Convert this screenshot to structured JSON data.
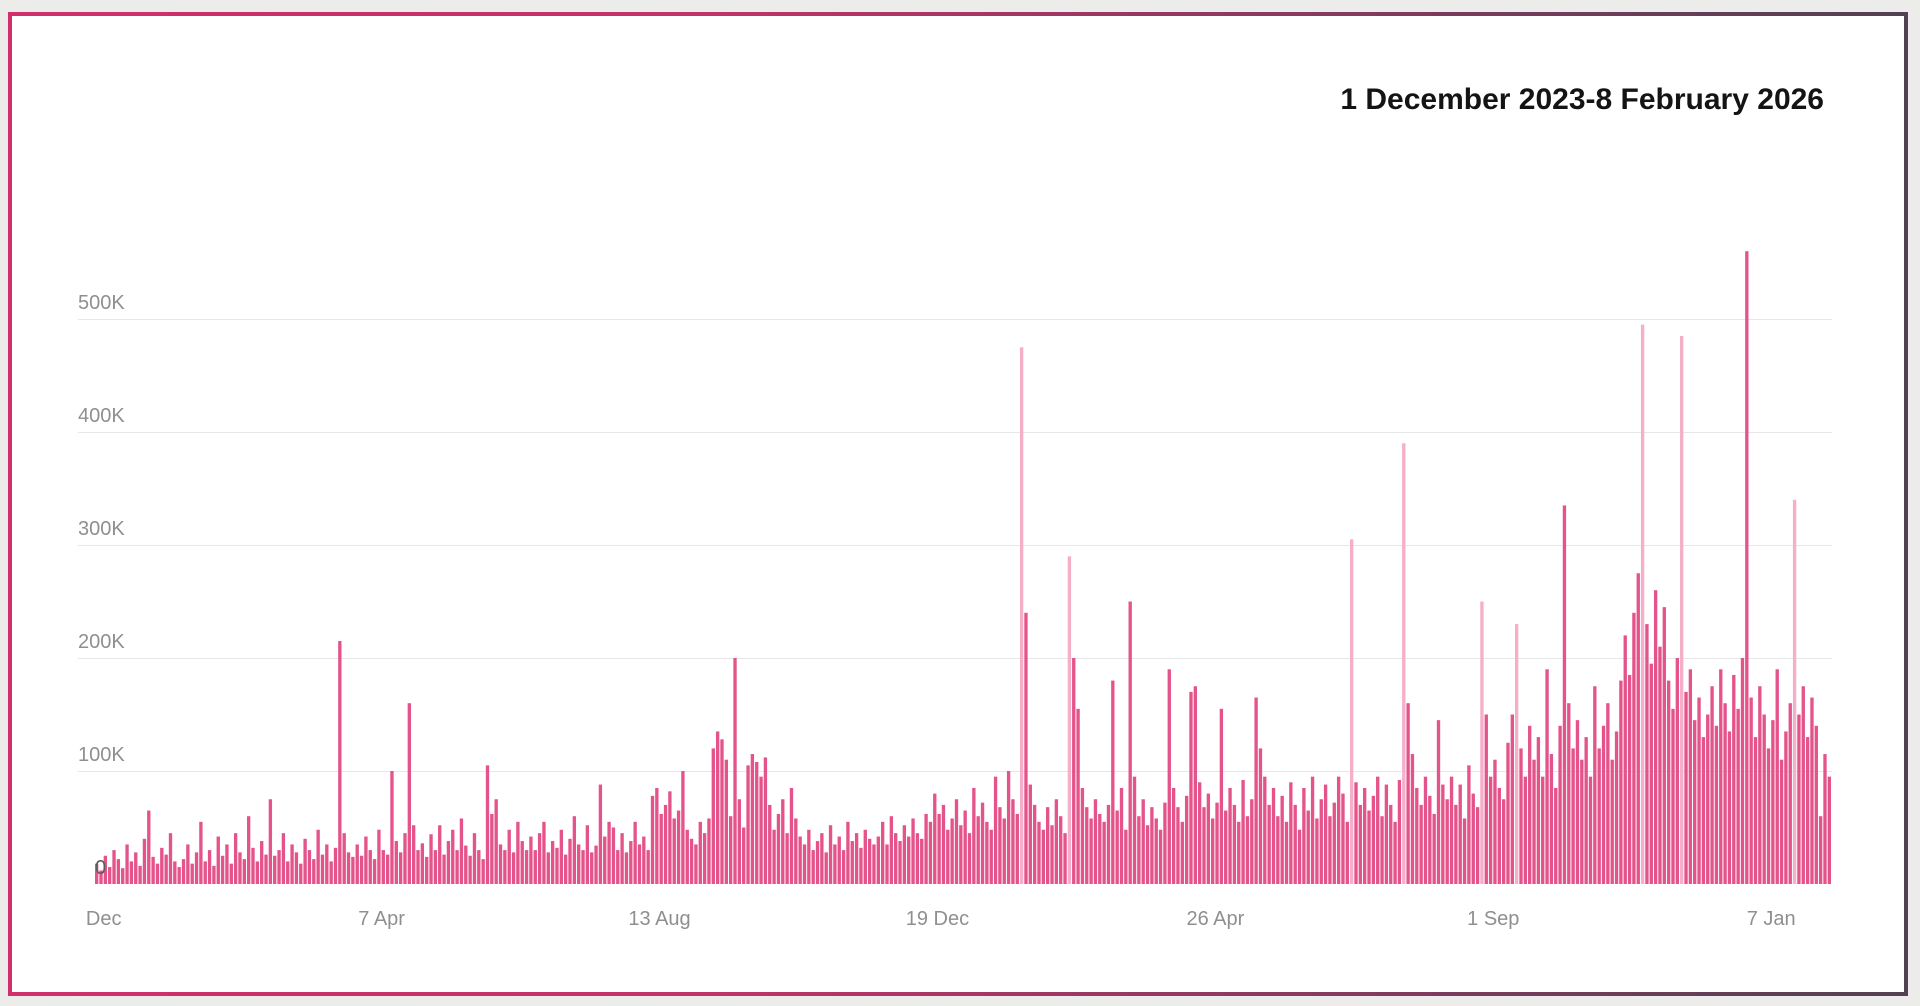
{
  "window": {
    "type": "chart-panel"
  },
  "chart_data": {
    "type": "bar",
    "title": "1 December 2023-8 February 2026",
    "start_date": "1 December 2023",
    "end_date": "8 February 2026",
    "unit": "count",
    "value_scale": "thousands",
    "bin_days": 2,
    "grid": true,
    "ylim": [
      0,
      560000
    ],
    "y_ticks": [
      {
        "label": "500K",
        "value": 500
      },
      {
        "label": "400K",
        "value": 400
      },
      {
        "label": "300K",
        "value": 300
      },
      {
        "label": "200K",
        "value": 200
      },
      {
        "label": "100K",
        "value": 100
      }
    ],
    "y_zero_label": "0",
    "x_ticks": [
      {
        "label": "Dec",
        "bin": 2
      },
      {
        "label": "7 Apr",
        "bin": 66
      },
      {
        "label": "13 Aug",
        "bin": 130
      },
      {
        "label": "19 Dec",
        "bin": 194
      },
      {
        "label": "26 Apr",
        "bin": 258
      },
      {
        "label": "1 Sep",
        "bin": 322
      },
      {
        "label": "7 Jan",
        "bin": 386
      }
    ],
    "values_in_thousands": [
      18,
      12,
      25,
      15,
      30,
      22,
      14,
      35,
      20,
      28,
      16,
      40,
      65,
      24,
      18,
      32,
      26,
      45,
      20,
      15,
      22,
      35,
      18,
      28,
      55,
      20,
      30,
      16,
      42,
      25,
      35,
      18,
      45,
      28,
      22,
      60,
      32,
      20,
      38,
      26,
      75,
      25,
      30,
      45,
      20,
      35,
      28,
      18,
      40,
      30,
      22,
      48,
      26,
      35,
      20,
      32,
      215,
      45,
      28,
      24,
      35,
      25,
      42,
      30,
      22,
      48,
      30,
      26,
      100,
      38,
      28,
      45,
      160,
      52,
      30,
      36,
      24,
      44,
      30,
      52,
      26,
      38,
      48,
      30,
      58,
      34,
      25,
      45,
      30,
      22,
      105,
      62,
      75,
      35,
      30,
      48,
      28,
      55,
      38,
      30,
      42,
      30,
      45,
      55,
      28,
      38,
      32,
      48,
      26,
      40,
      60,
      35,
      30,
      52,
      28,
      34,
      88,
      42,
      55,
      50,
      30,
      45,
      28,
      38,
      55,
      35,
      42,
      30,
      78,
      85,
      62,
      70,
      82,
      58,
      65,
      100,
      48,
      40,
      35,
      55,
      45,
      58,
      120,
      135,
      128,
      110,
      60,
      200,
      75,
      50,
      105,
      115,
      108,
      95,
      112,
      70,
      48,
      62,
      75,
      45,
      85,
      58,
      42,
      35,
      48,
      30,
      38,
      45,
      28,
      52,
      35,
      42,
      30,
      55,
      38,
      45,
      32,
      48,
      40,
      35,
      42,
      55,
      35,
      60,
      45,
      38,
      52,
      42,
      58,
      45,
      40,
      62,
      55,
      80,
      62,
      70,
      48,
      58,
      75,
      52,
      65,
      45,
      85,
      60,
      72,
      55,
      48,
      95,
      68,
      58,
      100,
      75,
      62,
      475,
      240,
      88,
      70,
      55,
      48,
      68,
      52,
      75,
      60,
      45,
      290,
      200,
      155,
      85,
      68,
      58,
      75,
      62,
      55,
      70,
      180,
      65,
      85,
      48,
      250,
      95,
      60,
      75,
      52,
      68,
      58,
      48,
      72,
      190,
      85,
      68,
      55,
      78,
      170,
      175,
      90,
      68,
      80,
      58,
      72,
      155,
      65,
      85,
      70,
      55,
      92,
      60,
      75,
      165,
      120,
      95,
      70,
      85,
      60,
      78,
      55,
      90,
      70,
      48,
      85,
      65,
      95,
      58,
      75,
      88,
      60,
      72,
      95,
      80,
      55,
      305,
      90,
      70,
      85,
      65,
      78,
      95,
      60,
      88,
      70,
      55,
      92,
      390,
      160,
      115,
      85,
      70,
      95,
      78,
      62,
      145,
      88,
      75,
      95,
      70,
      88,
      58,
      105,
      80,
      68,
      250,
      150,
      95,
      110,
      85,
      75,
      125,
      150,
      230,
      120,
      95,
      140,
      110,
      130,
      95,
      190,
      115,
      85,
      140,
      335,
      160,
      120,
      145,
      110,
      130,
      95,
      175,
      120,
      140,
      160,
      110,
      135,
      180,
      220,
      185,
      240,
      275,
      495,
      230,
      195,
      260,
      210,
      245,
      180,
      155,
      200,
      485,
      170,
      190,
      145,
      165,
      130,
      150,
      175,
      140,
      190,
      160,
      135,
      185,
      155,
      200,
      560,
      165,
      130,
      175,
      150,
      120,
      145,
      190,
      110,
      135,
      160,
      340,
      150,
      175,
      130,
      165,
      140,
      60,
      115,
      95
    ],
    "highlight_indices": [
      213,
      224,
      289,
      301,
      319,
      327,
      356,
      365,
      391
    ],
    "colors": {
      "bar": "#e4538a",
      "bar_highlight": "#f5afc9",
      "gridline": "#e7e7e7",
      "axis_text": "#8f8f8f",
      "zero_text": "#5c5c5c",
      "title_text": "#141414",
      "frame_left": "#d02f6b",
      "frame_right": "#524153",
      "panel_background": "#ffffff",
      "page_background": "#ececeb"
    },
    "legend": null
  }
}
